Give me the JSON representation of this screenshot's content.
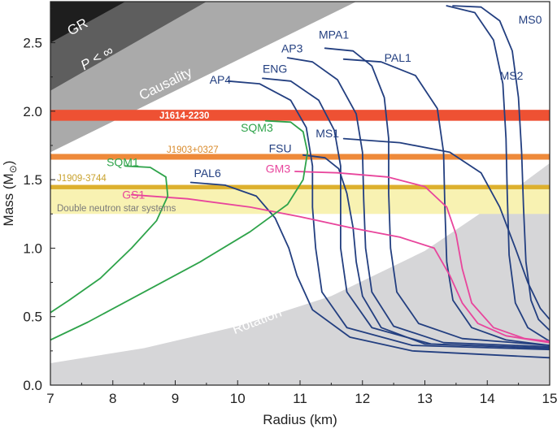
{
  "chart_data": {
    "type": "line",
    "xlabel": "Radius (km)",
    "ylabel_main": "Mass (M",
    "ylabel_sub": "⊙",
    "ylabel_close": ")",
    "xlim": [
      7,
      15
    ],
    "ylim": [
      0.0,
      2.8
    ],
    "xticks": [
      7,
      8,
      9,
      10,
      11,
      12,
      13,
      14,
      15
    ],
    "yticks": [
      0.0,
      0.5,
      1.0,
      1.5,
      2.0,
      2.5
    ],
    "ytick_labels": [
      "0.0",
      "0.5",
      "1.0",
      "1.5",
      "2.0",
      "2.5"
    ],
    "regions": {
      "gr": {
        "label": "GR",
        "color": "#1e1e1e",
        "boundary": [
          [
            7.0,
            2.5
          ],
          [
            8.2,
            2.8
          ]
        ]
      },
      "p_inf": {
        "label_main": "P",
        "label_rest": " < ∞",
        "color": "#5e5e5e",
        "boundary": [
          [
            7.0,
            2.15
          ],
          [
            9.5,
            2.8
          ]
        ]
      },
      "causality": {
        "label": "Causality",
        "color": "#aaaaaa",
        "boundary": [
          [
            7.0,
            1.7
          ],
          [
            11.9,
            2.8
          ]
        ]
      },
      "rotation": {
        "label": "Rotation",
        "color": "#d6d6d8",
        "boundary": [
          [
            7.0,
            0.16
          ],
          [
            8.5,
            0.27
          ],
          [
            10.0,
            0.43
          ],
          [
            11.5,
            0.65
          ],
          [
            13.0,
            0.98
          ],
          [
            14.2,
            1.35
          ],
          [
            15.0,
            1.62
          ]
        ]
      }
    },
    "bands": [
      {
        "name": "J1614-2230",
        "label": "J1614-2230",
        "center": 1.97,
        "half_width": 0.04,
        "color": "#ee5133",
        "label_color": "#ffffff"
      },
      {
        "name": "J1903+0327",
        "label": "J1903+0327",
        "center": 1.667,
        "half_width": 0.021,
        "color": "#ee8a3a",
        "label_color": "#d98a2a"
      },
      {
        "name": "J1909-3744",
        "label": "J1909-3744",
        "center": 1.438,
        "half_width": 0.024,
        "color": "#ddb02e",
        "label_color": "#c9a22c"
      },
      {
        "name": "Double neutron star systems",
        "label": "Double neutron star systems",
        "range": [
          1.25,
          1.43
        ],
        "color": "#f8f2b2",
        "label_color": "#7a7a7a"
      }
    ],
    "series": [
      {
        "name": "MS0",
        "label": "MS0",
        "color": "#233f80",
        "label_color": "#233f80",
        "label_at": [
          14.5,
          2.64
        ],
        "points": [
          [
            13.45,
            2.77
          ],
          [
            13.9,
            2.76
          ],
          [
            14.2,
            2.66
          ],
          [
            14.4,
            2.44
          ],
          [
            14.5,
            2.1
          ],
          [
            14.55,
            1.7
          ],
          [
            14.58,
            1.3
          ],
          [
            14.62,
            0.9
          ],
          [
            14.7,
            0.62
          ],
          [
            14.82,
            0.48
          ],
          [
            15.0,
            0.4
          ]
        ]
      },
      {
        "name": "MS2",
        "label": "MS2",
        "color": "#233f80",
        "label_color": "#233f80",
        "label_at": [
          14.2,
          2.23
        ],
        "points": [
          [
            13.35,
            2.77
          ],
          [
            13.8,
            2.72
          ],
          [
            14.1,
            2.52
          ],
          [
            14.25,
            2.2
          ],
          [
            14.3,
            1.8
          ],
          [
            14.32,
            1.4
          ],
          [
            14.35,
            0.95
          ],
          [
            14.45,
            0.6
          ],
          [
            14.65,
            0.42
          ],
          [
            15.0,
            0.32
          ]
        ]
      },
      {
        "name": "PAL1",
        "label": "PAL1",
        "color": "#233f80",
        "label_color": "#233f80",
        "label_at": [
          12.35,
          2.36
        ],
        "points": [
          [
            11.7,
            2.38
          ],
          [
            12.3,
            2.36
          ],
          [
            12.85,
            2.26
          ],
          [
            13.2,
            2.02
          ],
          [
            13.3,
            1.7
          ],
          [
            13.32,
            1.3
          ],
          [
            13.35,
            0.9
          ],
          [
            13.45,
            0.62
          ],
          [
            13.75,
            0.42
          ],
          [
            14.3,
            0.33
          ],
          [
            15.0,
            0.29
          ]
        ]
      },
      {
        "name": "MPA1",
        "label": "MPA1",
        "color": "#233f80",
        "label_color": "#233f80",
        "label_at": [
          11.3,
          2.53
        ],
        "points": [
          [
            11.4,
            2.46
          ],
          [
            11.85,
            2.44
          ],
          [
            12.15,
            2.33
          ],
          [
            12.35,
            2.1
          ],
          [
            12.42,
            1.8
          ],
          [
            12.42,
            1.4
          ],
          [
            12.45,
            1.0
          ],
          [
            12.55,
            0.68
          ],
          [
            12.9,
            0.45
          ],
          [
            13.6,
            0.34
          ],
          [
            15.0,
            0.29
          ]
        ]
      },
      {
        "name": "AP3",
        "label": "AP3",
        "color": "#233f80",
        "label_color": "#233f80",
        "label_at": [
          10.7,
          2.43
        ],
        "points": [
          [
            10.8,
            2.39
          ],
          [
            11.2,
            2.36
          ],
          [
            11.6,
            2.23
          ],
          [
            11.9,
            1.98
          ],
          [
            12.0,
            1.7
          ],
          [
            12.02,
            1.35
          ],
          [
            12.05,
            1.0
          ],
          [
            12.15,
            0.68
          ],
          [
            12.5,
            0.43
          ],
          [
            13.3,
            0.31
          ],
          [
            15.0,
            0.28
          ]
        ]
      },
      {
        "name": "ENG",
        "label": "ENG",
        "color": "#233f80",
        "label_color": "#233f80",
        "label_at": [
          10.4,
          2.28
        ],
        "points": [
          [
            10.4,
            2.24
          ],
          [
            10.85,
            2.22
          ],
          [
            11.3,
            2.08
          ],
          [
            11.55,
            1.86
          ],
          [
            11.65,
            1.6
          ],
          [
            11.65,
            1.3
          ],
          [
            11.65,
            1.0
          ],
          [
            11.75,
            0.68
          ],
          [
            12.15,
            0.42
          ],
          [
            13.1,
            0.3
          ],
          [
            15.0,
            0.27
          ]
        ]
      },
      {
        "name": "AP4",
        "label": "AP4",
        "color": "#233f80",
        "label_color": "#233f80",
        "label_at": [
          9.55,
          2.2
        ],
        "points": [
          [
            9.85,
            2.22
          ],
          [
            10.35,
            2.2
          ],
          [
            10.85,
            2.08
          ],
          [
            11.1,
            1.88
          ],
          [
            11.2,
            1.6
          ],
          [
            11.2,
            1.3
          ],
          [
            11.25,
            1.0
          ],
          [
            11.35,
            0.68
          ],
          [
            11.75,
            0.42
          ],
          [
            12.8,
            0.29
          ],
          [
            15.0,
            0.26
          ]
        ]
      },
      {
        "name": "MS1",
        "label": "MS1",
        "color": "#233f80",
        "label_color": "#233f80",
        "label_at": [
          11.25,
          1.81
        ],
        "points": [
          [
            11.7,
            1.8
          ],
          [
            12.6,
            1.77
          ],
          [
            13.4,
            1.7
          ],
          [
            13.9,
            1.55
          ],
          [
            14.2,
            1.3
          ],
          [
            14.45,
            1.0
          ],
          [
            14.65,
            0.75
          ],
          [
            14.85,
            0.56
          ],
          [
            15.0,
            0.48
          ]
        ]
      },
      {
        "name": "FSU",
        "label": "FSU",
        "color": "#233f80",
        "label_color": "#233f80",
        "label_at": [
          10.5,
          1.7
        ],
        "points": [
          [
            11.05,
            1.68
          ],
          [
            11.4,
            1.66
          ],
          [
            11.62,
            1.58
          ],
          [
            11.75,
            1.4
          ],
          [
            11.85,
            1.15
          ],
          [
            11.9,
            0.9
          ],
          [
            12.0,
            0.65
          ],
          [
            12.3,
            0.42
          ],
          [
            13.0,
            0.3
          ],
          [
            15.0,
            0.27
          ]
        ]
      },
      {
        "name": "PAL6",
        "label": "PAL6",
        "color": "#233f80",
        "label_color": "#233f80",
        "label_at": [
          9.3,
          1.52
        ],
        "points": [
          [
            9.25,
            1.48
          ],
          [
            9.8,
            1.46
          ],
          [
            10.3,
            1.38
          ],
          [
            10.6,
            1.22
          ],
          [
            10.82,
            1.0
          ],
          [
            10.95,
            0.8
          ],
          [
            11.2,
            0.55
          ],
          [
            11.8,
            0.35
          ],
          [
            12.8,
            0.25
          ],
          [
            15.0,
            0.2
          ]
        ]
      },
      {
        "name": "GM3",
        "label": "GM3",
        "color": "#e8459c",
        "label_color": "#e8459c",
        "label_at": [
          10.45,
          1.55
        ],
        "points": [
          [
            10.92,
            1.56
          ],
          [
            11.6,
            1.55
          ],
          [
            12.4,
            1.52
          ],
          [
            13.0,
            1.45
          ],
          [
            13.35,
            1.3
          ],
          [
            13.5,
            1.1
          ],
          [
            13.6,
            0.85
          ],
          [
            13.75,
            0.6
          ],
          [
            14.1,
            0.42
          ],
          [
            14.6,
            0.34
          ],
          [
            15.0,
            0.32
          ]
        ]
      },
      {
        "name": "GS1",
        "label": "GS1",
        "color": "#e8459c",
        "label_color": "#e8459c",
        "label_at": [
          8.15,
          1.36
        ],
        "points": [
          [
            8.3,
            1.39
          ],
          [
            9.2,
            1.36
          ],
          [
            10.2,
            1.3
          ],
          [
            11.0,
            1.23
          ],
          [
            11.8,
            1.15
          ],
          [
            12.6,
            1.08
          ],
          [
            13.15,
            1.0
          ],
          [
            13.4,
            0.8
          ],
          [
            13.6,
            0.6
          ],
          [
            13.85,
            0.45
          ],
          [
            14.3,
            0.36
          ],
          [
            15.0,
            0.31
          ]
        ]
      },
      {
        "name": "SQM3",
        "label": "SQM3",
        "color": "#2ea34a",
        "label_color": "#2ea34a",
        "label_at": [
          10.05,
          1.85
        ],
        "points": [
          [
            10.45,
            1.93
          ],
          [
            10.85,
            1.92
          ],
          [
            11.05,
            1.85
          ],
          [
            11.12,
            1.7
          ],
          [
            11.05,
            1.5
          ],
          [
            10.8,
            1.32
          ],
          [
            10.2,
            1.12
          ],
          [
            9.4,
            0.9
          ],
          [
            8.5,
            0.68
          ],
          [
            7.6,
            0.46
          ],
          [
            7.0,
            0.33
          ]
        ]
      },
      {
        "name": "SQM1",
        "label": "SQM1",
        "color": "#2ea34a",
        "label_color": "#2ea34a",
        "label_at": [
          7.9,
          1.6
        ],
        "points": [
          [
            8.2,
            1.6
          ],
          [
            8.6,
            1.59
          ],
          [
            8.85,
            1.52
          ],
          [
            8.88,
            1.38
          ],
          [
            8.7,
            1.2
          ],
          [
            8.3,
            1.0
          ],
          [
            7.8,
            0.78
          ],
          [
            7.3,
            0.62
          ],
          [
            7.0,
            0.53
          ]
        ]
      }
    ]
  }
}
